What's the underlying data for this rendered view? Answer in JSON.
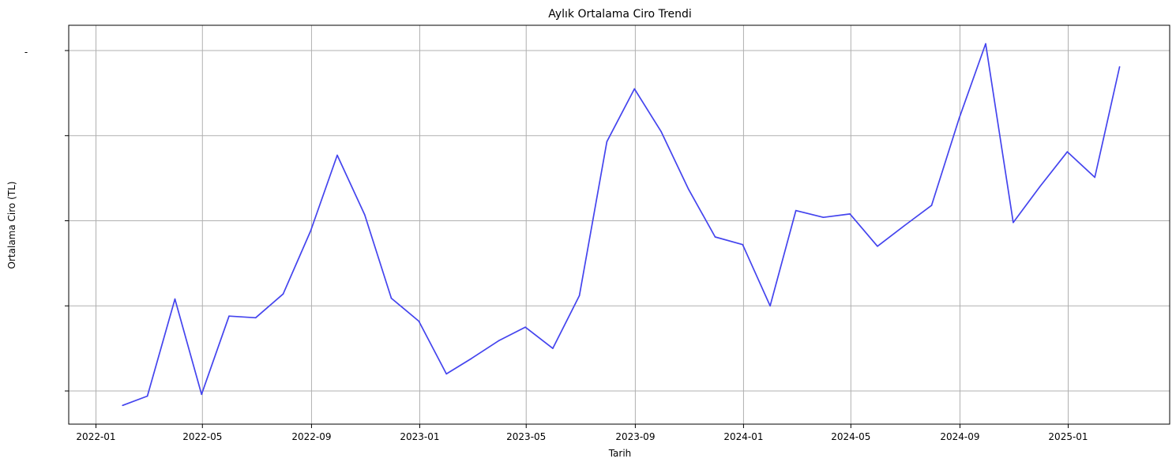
{
  "chart_data": {
    "type": "line",
    "title": "Aylık Ortalama Ciro Trendi",
    "xlabel": "Tarih",
    "ylabel": "Ortalama Ciro (TL)",
    "x_ticks": [
      "2022-01",
      "2022-05",
      "2022-09",
      "2023-01",
      "2023-05",
      "2023-09",
      "2024-01",
      "2024-05",
      "2024-09",
      "2025-01"
    ],
    "y_tick_count": 5,
    "y_top_tick_label": "-",
    "grid": true,
    "legend": "none",
    "series": [
      {
        "color": "#4444ee",
        "x": [
          "2022-01-31",
          "2022-02-28",
          "2022-03-31",
          "2022-04-30",
          "2022-05-31",
          "2022-06-30",
          "2022-07-31",
          "2022-08-31",
          "2022-09-30",
          "2022-10-31",
          "2022-11-30",
          "2022-12-31",
          "2023-01-31",
          "2023-02-28",
          "2023-03-31",
          "2023-04-30",
          "2023-05-31",
          "2023-06-30",
          "2023-07-31",
          "2023-08-31",
          "2023-09-30",
          "2023-10-31",
          "2023-11-30",
          "2023-12-31",
          "2024-01-31",
          "2024-02-29",
          "2024-03-31",
          "2024-04-30",
          "2024-05-31",
          "2024-06-30",
          "2024-07-31",
          "2024-08-31",
          "2024-09-30",
          "2024-10-31",
          "2024-11-30",
          "2024-12-31",
          "2025-01-31",
          "2025-02-28"
        ],
        "values": [
          -0.17,
          -0.06,
          1.08,
          -0.04,
          0.88,
          0.86,
          1.14,
          1.88,
          2.77,
          2.07,
          1.09,
          0.82,
          0.2,
          0.38,
          0.59,
          0.75,
          0.5,
          1.12,
          2.93,
          3.55,
          3.05,
          2.37,
          1.81,
          1.72,
          1.0,
          2.12,
          2.04,
          2.08,
          1.7,
          1.94,
          2.18,
          3.2,
          4.08,
          1.98,
          2.4,
          2.81,
          2.51,
          3.81
        ]
      }
    ]
  }
}
